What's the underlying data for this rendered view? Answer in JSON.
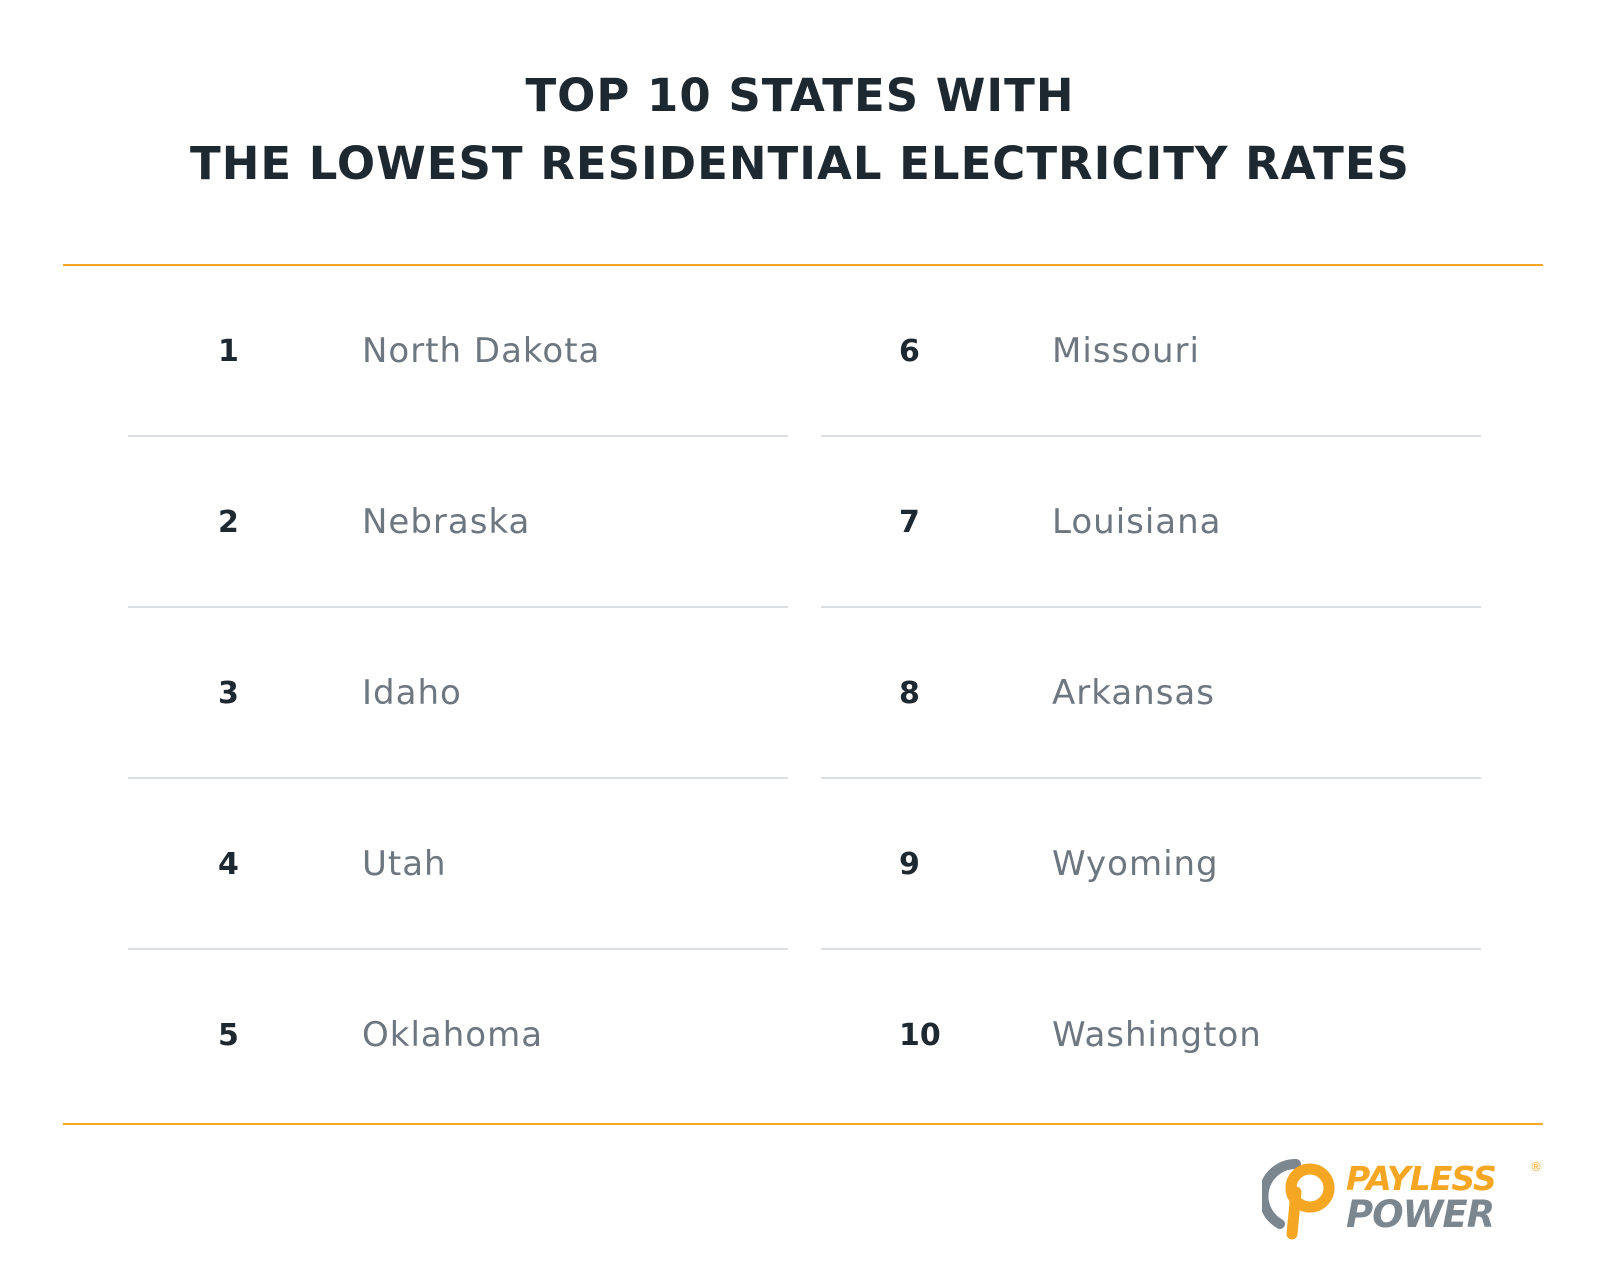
{
  "title": {
    "line1": "TOP 10 STATES WITH",
    "line2": "THE LOWEST RESIDENTIAL ELECTRICITY RATES"
  },
  "colors": {
    "accent": "#f5a623",
    "heading": "#1e2830",
    "state_text": "#6e7780",
    "divider": "#dcdfe2",
    "logo_gray": "#7c868f"
  },
  "rankings": {
    "left": [
      {
        "rank": "1",
        "state": "North Dakota"
      },
      {
        "rank": "2",
        "state": "Nebraska"
      },
      {
        "rank": "3",
        "state": "Idaho"
      },
      {
        "rank": "4",
        "state": "Utah"
      },
      {
        "rank": "5",
        "state": "Oklahoma"
      }
    ],
    "right": [
      {
        "rank": "6",
        "state": "Missouri"
      },
      {
        "rank": "7",
        "state": "Louisiana"
      },
      {
        "rank": "8",
        "state": "Arkansas"
      },
      {
        "rank": "9",
        "state": "Wyoming"
      },
      {
        "rank": "10",
        "state": "Washington"
      }
    ]
  },
  "logo": {
    "line1": "PAYLESS",
    "line2": "POWER",
    "registered": "®",
    "icon": "payless-power-p-icon"
  }
}
